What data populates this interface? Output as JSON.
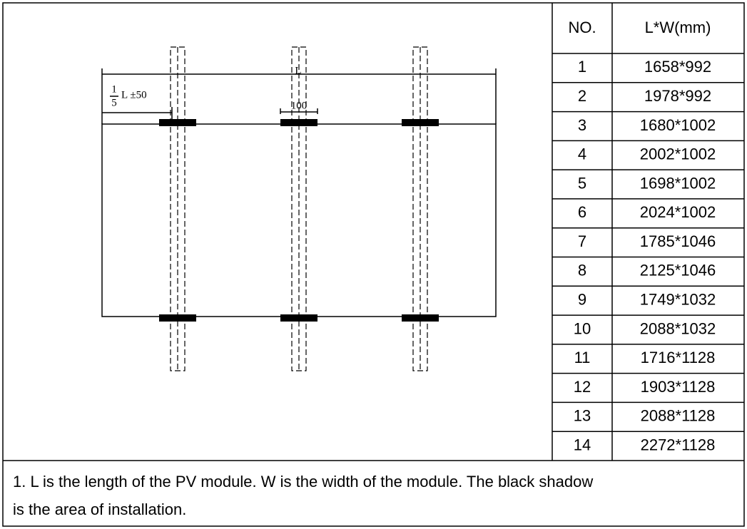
{
  "diagram": {
    "length_label": "L",
    "offset_numerator": "1",
    "offset_denominator": "5",
    "offset_suffix": "L ±50",
    "clamp_width": "100"
  },
  "table": {
    "headers": [
      "NO.",
      "L*W(mm)"
    ],
    "rows": [
      [
        "1",
        "1658*992"
      ],
      [
        "2",
        "1978*992"
      ],
      [
        "3",
        "1680*1002"
      ],
      [
        "4",
        "2002*1002"
      ],
      [
        "5",
        "1698*1002"
      ],
      [
        "6",
        "2024*1002"
      ],
      [
        "7",
        "1785*1046"
      ],
      [
        "8",
        "2125*1046"
      ],
      [
        "9",
        "1749*1032"
      ],
      [
        "10",
        "2088*1032"
      ],
      [
        "11",
        "1716*1128"
      ],
      [
        "12",
        "1903*1128"
      ],
      [
        "13",
        "2088*1128"
      ],
      [
        "14",
        "2272*1128"
      ]
    ]
  },
  "note": {
    "lines": [
      "1. L is the length of the PV module. W is the width of the module. The black shadow",
      "is the area of installation."
    ]
  }
}
